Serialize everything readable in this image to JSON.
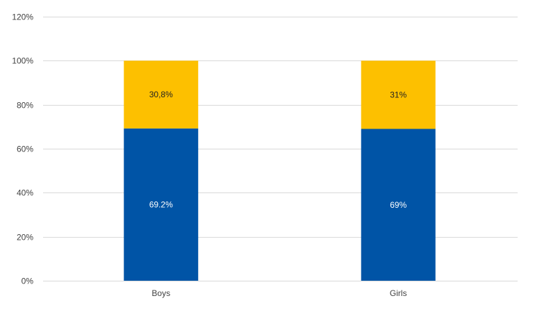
{
  "chart_data": {
    "type": "bar",
    "stacked": true,
    "title": "",
    "xlabel": "",
    "ylabel": "",
    "ylim": [
      0,
      120
    ],
    "yticks": [
      0,
      20,
      40,
      60,
      80,
      100,
      120
    ],
    "ytick_labels": [
      "0%",
      "20%",
      "40%",
      "60%",
      "80%",
      "100%",
      "120%"
    ],
    "grid": true,
    "categories": [
      "Boys",
      "Girls"
    ],
    "series": [
      {
        "values": [
          69.2,
          69
        ],
        "labels": [
          "69.2%",
          "69%"
        ],
        "color": "#0054A6",
        "label_color": "#ffffff"
      },
      {
        "values": [
          30.8,
          31
        ],
        "labels": [
          "30,8%",
          "31%"
        ],
        "color": "#FDC000",
        "label_color": "#222222"
      }
    ],
    "legend": "none"
  }
}
